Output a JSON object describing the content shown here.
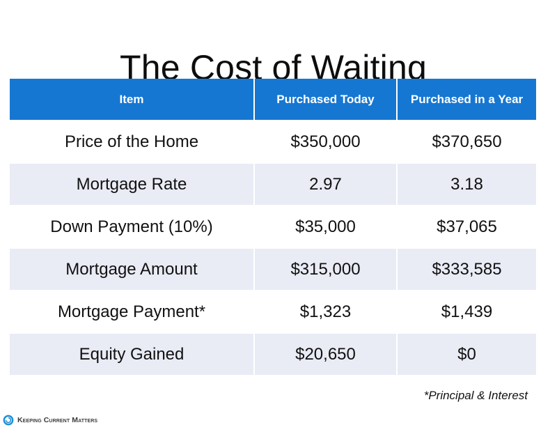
{
  "title": "The Cost of Waiting",
  "table": {
    "headers": [
      "Item",
      "Purchased Today",
      "Purchased in a Year"
    ],
    "rows": [
      [
        "Price of the Home",
        "$350,000",
        "$370,650"
      ],
      [
        "Mortgage Rate",
        "2.97",
        "3.18"
      ],
      [
        "Down Payment (10%)",
        "$35,000",
        "$37,065"
      ],
      [
        "Mortgage Amount",
        "$315,000",
        "$333,585"
      ],
      [
        "Mortgage Payment*",
        "$1,323",
        "$1,439"
      ],
      [
        "Equity Gained",
        "$20,650",
        "$0"
      ]
    ]
  },
  "footnote": "*Principal & Interest",
  "logo": {
    "text": "Keeping Current Matters",
    "icon": "kcm-swirl-icon"
  },
  "colors": {
    "header_bg": "#1677d2",
    "header_text": "#ffffff",
    "row_alt_bg": "#e9ebf5",
    "logo_accent": "#1a8fd8"
  }
}
